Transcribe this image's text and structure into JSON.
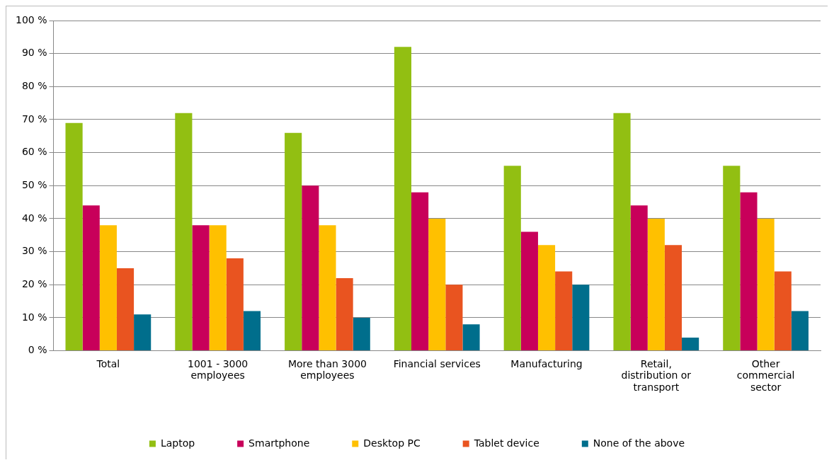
{
  "chart_data": {
    "type": "bar",
    "categories": [
      "Total",
      "1001 - 3000\nemployees",
      "More than 3000\nemployees",
      "Financial services",
      "Manufacturing",
      "Retail,\ndistribution or\ntransport",
      "Other\ncommercial\nsector"
    ],
    "series": [
      {
        "name": "Laptop",
        "color": "#92bf12",
        "values": [
          69,
          72,
          66,
          92,
          56,
          72,
          56
        ]
      },
      {
        "name": "Smartphone",
        "color": "#c8005a",
        "values": [
          44,
          38,
          50,
          48,
          36,
          44,
          48
        ]
      },
      {
        "name": "Desktop PC",
        "color": "#ffc000",
        "values": [
          38,
          38,
          38,
          40,
          32,
          40,
          40
        ]
      },
      {
        "name": "Tablet device",
        "color": "#e95420",
        "values": [
          25,
          28,
          22,
          20,
          24,
          32,
          24
        ]
      },
      {
        "name": "None of the above",
        "color": "#006e8c",
        "values": [
          11,
          12,
          10,
          8,
          20,
          4,
          12
        ]
      }
    ],
    "ylim": [
      0,
      100
    ],
    "yticks": [
      {
        "value": 0,
        "label": "0 %"
      },
      {
        "value": 10,
        "label": "10 %"
      },
      {
        "value": 20,
        "label": "20 %"
      },
      {
        "value": 30,
        "label": "30 %"
      },
      {
        "value": 40,
        "label": "40 %"
      },
      {
        "value": 50,
        "label": "50 %"
      },
      {
        "value": 60,
        "label": "60 %"
      },
      {
        "value": 70,
        "label": "70 %"
      },
      {
        "value": 80,
        "label": "80 %"
      },
      {
        "value": 90,
        "label": "90 %"
      },
      {
        "value": 100,
        "label": "100 %"
      }
    ],
    "grid": "y",
    "legend": "bottom"
  }
}
